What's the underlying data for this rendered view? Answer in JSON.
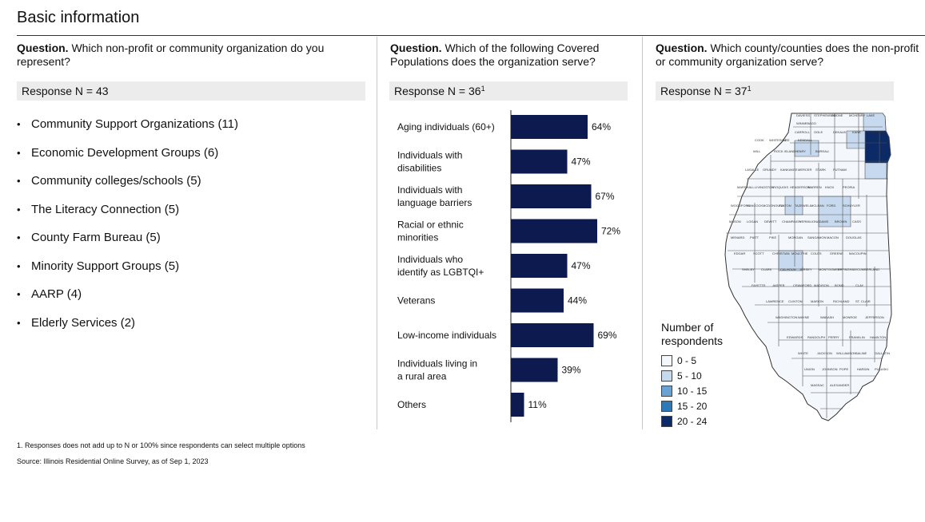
{
  "page": {
    "title": "Basic information",
    "footnote": "1.   Responses does not add up to N or 100% since respondents can select multiple options",
    "source": "Source: Illinois Residential Online Survey, as of Sep 1, 2023"
  },
  "col1": {
    "question_label": "Question.",
    "question_text": " Which non-profit or community organization do you represent?",
    "response": "Response N = 43",
    "items": [
      "Community Support Organizations (11)",
      "Economic Development Groups (6)",
      "Community colleges/schools (5)",
      "The Literacy Connection (5)",
      "County Farm Bureau (5)",
      "Minority Support Groups (5)",
      "AARP (4)",
      "Elderly Services (2)"
    ]
  },
  "col2": {
    "question_label": "Question.",
    "question_text": " Which of the following Covered Populations does the organization serve?",
    "response": "Response N = 36",
    "response_sup": "1"
  },
  "chart_data": {
    "type": "bar",
    "orientation": "horizontal",
    "categories": [
      [
        "Aging individuals (60+)"
      ],
      [
        "Individuals with",
        "disabilities"
      ],
      [
        "Individuals with",
        "language barriers"
      ],
      [
        "Racial or ethnic",
        "minorities"
      ],
      [
        "Individuals who",
        "identify as LGBTQI+"
      ],
      [
        "Veterans"
      ],
      [
        "Low-income individuals"
      ],
      [
        "Individuals living in",
        "a rural area"
      ],
      [
        "Others"
      ]
    ],
    "values": [
      64,
      47,
      67,
      72,
      47,
      44,
      69,
      39,
      11
    ],
    "value_labels": [
      "64%",
      "47%",
      "67%",
      "72%",
      "47%",
      "44%",
      "69%",
      "39%",
      "11%"
    ],
    "xlim": [
      0,
      100
    ],
    "bar_color": "#0d1a4f"
  },
  "col3": {
    "question_label": "Question.",
    "question_text": " Which county/counties does the non-profit or community organization serve?",
    "response": "Response N = 37",
    "response_sup": "1",
    "legend_title_1": "Number of",
    "legend_title_2": "respondents",
    "legend": [
      {
        "label": "0 - 5",
        "color": "#f4f7fb"
      },
      {
        "label": "5 - 10",
        "color": "#c6d9ee"
      },
      {
        "label": "10 - 15",
        "color": "#6aa2d4"
      },
      {
        "label": "15 - 20",
        "color": "#2e79b8"
      },
      {
        "label": "20 - 24",
        "color": "#0b2a66"
      }
    ],
    "map_counties": [
      "DAVIESS",
      "STEPHENSON",
      "BOONE",
      "MCHENRY",
      "LAKE",
      "WINNEBAGO",
      "CARROLL",
      "OGLE",
      "DEKALB",
      "KANE",
      "DUPAGE",
      "COOK",
      "WHITESIDE",
      "LEE",
      "KENDALL",
      "WILL",
      "ROCK ISLAND",
      "HENRY",
      "BUREAU",
      "LASALLE",
      "GRUNDY",
      "KANKAKEE",
      "MERCER",
      "STARK",
      "PUTNAM",
      "MARSHALL",
      "LIVINGSTON",
      "IROQUOIS",
      "HENDERSON",
      "WARREN",
      "KNOX",
      "PEORIA",
      "WOODFORD",
      "HANCOCK",
      "MCDONOUGH",
      "FULTON",
      "TAZEWELL",
      "MCLEAN",
      "FORD",
      "SCHUYLER",
      "MASON",
      "LOGAN",
      "DEWITT",
      "CHAMPAIGN",
      "VERMILION",
      "ADAMS",
      "BROWN",
      "CASS",
      "MENARD",
      "PIATT",
      "PIKE",
      "MORGAN",
      "SANGAMON",
      "MACON",
      "DOUGLAS",
      "EDGAR",
      "SCOTT",
      "CHRISTIAN",
      "MOULTRIE",
      "COLES",
      "GREENE",
      "MACOUPIN",
      "SHELBY",
      "CLARK",
      "CALHOUN",
      "JERSEY",
      "MONTGOMERY",
      "EFFINGHAM",
      "CUMBERLAND",
      "FAYETTE",
      "JASPER",
      "CRAWFORD",
      "MADISON",
      "BOND",
      "CLAY",
      "LAWRENCE",
      "CLINTON",
      "MARION",
      "RICHLAND",
      "ST. CLAIR",
      "WASHINGTON",
      "WAYNE",
      "WABASH",
      "MONROE",
      "JEFFERSON",
      "EDWARDS",
      "RANDOLPH",
      "PERRY",
      "FRANKLIN",
      "HAMILTON",
      "WHITE",
      "JACKSON",
      "WILLIAMSON",
      "SALINE",
      "GALLATIN",
      "UNION",
      "JOHNSON",
      "POPE",
      "HARDIN",
      "PULASKI",
      "MASSAC",
      "ALEXANDER"
    ]
  }
}
